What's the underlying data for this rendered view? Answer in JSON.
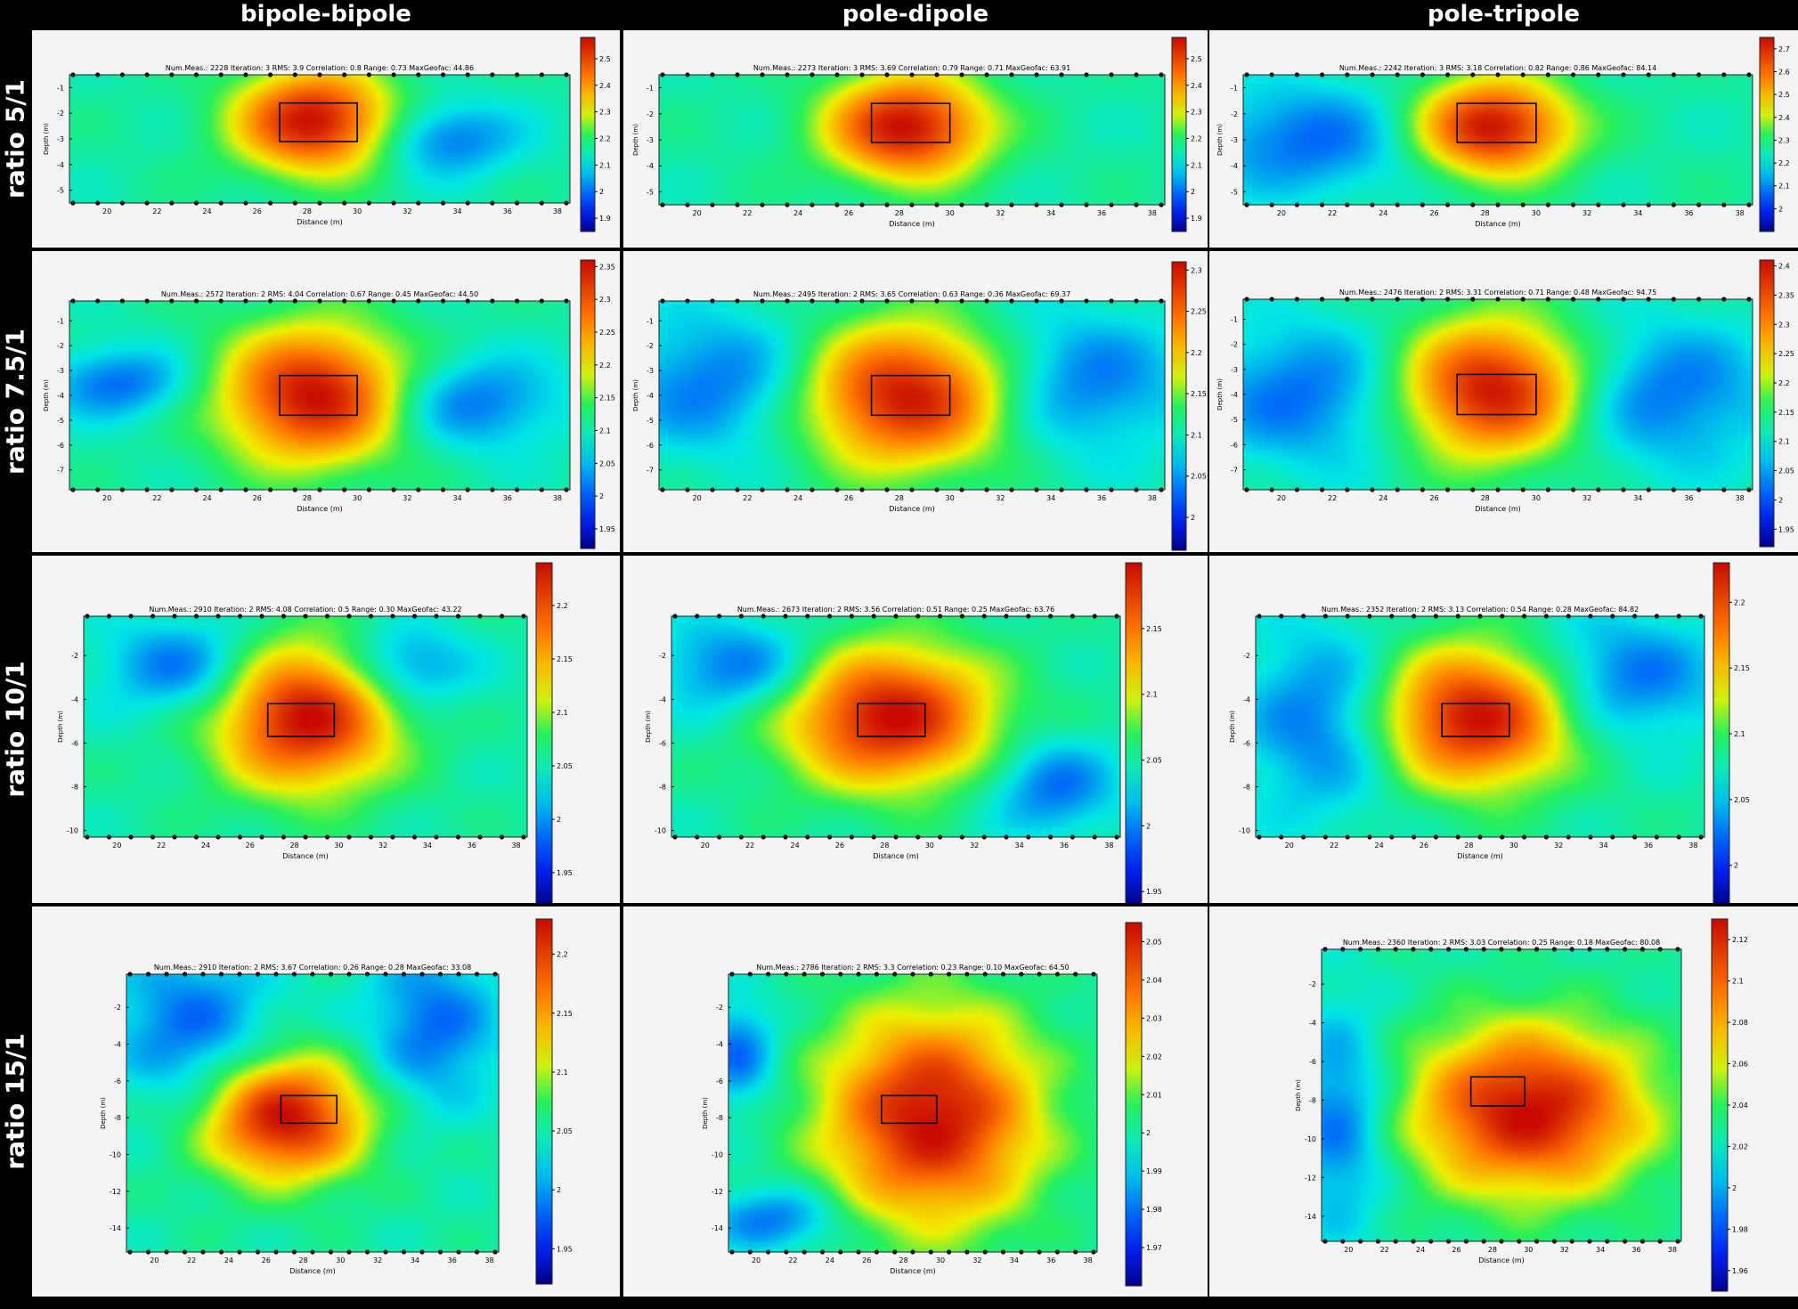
{
  "column_titles": [
    "bipole-bipole",
    "pole-dipole",
    "pole-tripole"
  ],
  "row_titles": [
    "ratio 5/1",
    "ratio 7.5/1",
    "ratio 10/1",
    "ratio 15/1"
  ],
  "common": {
    "xlabel": "Distance (m)",
    "ylabel": "Depth (m)",
    "xticks": [
      20,
      22,
      24,
      26,
      28,
      30,
      32,
      34,
      36,
      38
    ]
  },
  "chart_data": [
    {
      "type": "heatmap",
      "row": "ratio 5/1",
      "column": "bipole-bipole",
      "info": "Num.Meas.: 2228   Iteration: 3   RMS: 3.9   Correlation: 0.8   Range: 0.73   MaxGeofac: 44.86",
      "yticks": [
        -1,
        -2,
        -3,
        -4,
        -5
      ],
      "ylim": [
        -5.5,
        -0.5
      ],
      "xlim": [
        18.5,
        38.5
      ],
      "colorbar_ticks": [
        1.9,
        2,
        2.1,
        2.2,
        2.3,
        2.4,
        2.5
      ],
      "crange": [
        1.85,
        2.58
      ],
      "target": {
        "x": [
          26.9,
          30
        ],
        "y": [
          -1.6,
          -3.1
        ]
      },
      "anomaly": {
        "x": 28.3,
        "y": -2.3,
        "sx": 2.2,
        "sy": 1.4
      },
      "lows": [
        {
          "x": 33.5,
          "y": -3,
          "sx": 2,
          "sy": 1
        }
      ]
    },
    {
      "type": "heatmap",
      "row": "ratio 5/1",
      "column": "pole-dipole",
      "info": "Num.Meas.: 2273   Iteration: 3   RMS: 3.69   Correlation: 0.79   Range: 0.71   MaxGeofac: 63.91",
      "yticks": [
        -1,
        -2,
        -3,
        -4,
        -5
      ],
      "ylim": [
        -5.5,
        -0.5
      ],
      "xlim": [
        18.5,
        38.5
      ],
      "colorbar_ticks": [
        1.9,
        2,
        2.1,
        2.2,
        2.3,
        2.4,
        2.5
      ],
      "crange": [
        1.85,
        2.58
      ],
      "target": {
        "x": [
          26.9,
          30
        ],
        "y": [
          -1.6,
          -3.1
        ]
      },
      "anomaly": {
        "x": 28.3,
        "y": -2.5,
        "sx": 2.2,
        "sy": 1.4
      },
      "lows": []
    },
    {
      "type": "heatmap",
      "row": "ratio 5/1",
      "column": "pole-tripole",
      "info": "Num.Meas.: 2242   Iteration: 3   RMS: 3.18   Correlation: 0.82   Range: 0.86   MaxGeofac: 84.14",
      "yticks": [
        -1,
        -2,
        -3,
        -4,
        -5
      ],
      "ylim": [
        -5.5,
        -0.5
      ],
      "xlim": [
        18.5,
        38.5
      ],
      "colorbar_ticks": [
        2,
        2.1,
        2.2,
        2.3,
        2.4,
        2.5,
        2.6,
        2.7
      ],
      "crange": [
        1.9,
        2.75
      ],
      "target": {
        "x": [
          26.9,
          30
        ],
        "y": [
          -1.6,
          -3.1
        ]
      },
      "anomaly": {
        "x": 28.3,
        "y": -2.5,
        "sx": 2.1,
        "sy": 1.3
      },
      "lows": [
        {
          "x": 21,
          "y": -3,
          "sx": 3,
          "sy": 1.5
        }
      ]
    },
    {
      "type": "heatmap",
      "row": "ratio 7.5/1",
      "column": "bipole-bipole",
      "info": "Num.Meas.: 2572   Iteration: 2   RMS: 4.04   Correlation: 0.67   Range: 0.45   MaxGeofac: 44.50",
      "yticks": [
        -1,
        -2,
        -3,
        -4,
        -5,
        -6,
        -7
      ],
      "ylim": [
        -7.8,
        -0.2
      ],
      "xlim": [
        18.5,
        38.5
      ],
      "colorbar_ticks": [
        1.95,
        2,
        2.05,
        2.1,
        2.15,
        2.2,
        2.25,
        2.3,
        2.35
      ],
      "crange": [
        1.92,
        2.36
      ],
      "target": {
        "x": [
          26.9,
          30
        ],
        "y": [
          -3.2,
          -4.8
        ]
      },
      "anomaly": {
        "x": 28.3,
        "y": -4,
        "sx": 2.6,
        "sy": 1.9
      },
      "lows": [
        {
          "x": 34.5,
          "y": -4.3,
          "sx": 2.5,
          "sy": 1.3
        },
        {
          "x": 20.5,
          "y": -3.5,
          "sx": 2,
          "sy": 1
        }
      ]
    },
    {
      "type": "heatmap",
      "row": "ratio 7.5/1",
      "column": "pole-dipole",
      "info": "Num.Meas.: 2495   Iteration: 2   RMS: 3.65   Correlation: 0.63   Range: 0.36   MaxGeofac: 69.37",
      "yticks": [
        -1,
        -2,
        -3,
        -4,
        -5,
        -6,
        -7
      ],
      "ylim": [
        -7.8,
        -0.2
      ],
      "xlim": [
        18.5,
        38.5
      ],
      "colorbar_ticks": [
        2,
        2.05,
        2.1,
        2.15,
        2.2,
        2.25,
        2.3
      ],
      "crange": [
        1.96,
        2.31
      ],
      "target": {
        "x": [
          26.9,
          30
        ],
        "y": [
          -3.2,
          -4.8
        ]
      },
      "anomaly": {
        "x": 28.3,
        "y": -4,
        "sx": 3,
        "sy": 2
      },
      "lows": [
        {
          "x": 21,
          "y": -3.5,
          "sx": 3,
          "sy": 2
        },
        {
          "x": 35,
          "y": -3.5,
          "sx": 3,
          "sy": 2
        }
      ]
    },
    {
      "type": "heatmap",
      "row": "ratio 7.5/1",
      "column": "pole-tripole",
      "info": "Num.Meas.: 2476   Iteration: 2   RMS: 3.31   Correlation: 0.71   Range: 0.48   MaxGeofac: 94.75",
      "yticks": [
        -1,
        -2,
        -3,
        -4,
        -5,
        -6,
        -7
      ],
      "ylim": [
        -7.8,
        -0.2
      ],
      "xlim": [
        18.5,
        38.5
      ],
      "colorbar_ticks": [
        1.95,
        2,
        2.05,
        2.1,
        2.15,
        2.2,
        2.25,
        2.3,
        2.35,
        2.4
      ],
      "crange": [
        1.92,
        2.41
      ],
      "target": {
        "x": [
          26.9,
          30
        ],
        "y": [
          -3.2,
          -4.8
        ]
      },
      "anomaly": {
        "x": 28.3,
        "y": -3.8,
        "sx": 2.6,
        "sy": 1.9
      },
      "lows": [
        {
          "x": 21,
          "y": -4,
          "sx": 3,
          "sy": 2
        },
        {
          "x": 35,
          "y": -4,
          "sx": 3,
          "sy": 2
        }
      ]
    },
    {
      "type": "heatmap",
      "row": "ratio 10/1",
      "column": "bipole-bipole",
      "info": "Num.Meas.: 2910   Iteration: 2   RMS: 4.08   Correlation: 0.5   Range: 0.30   MaxGeofac: 43.22",
      "yticks": [
        -2,
        -4,
        -6,
        -8,
        -10
      ],
      "ylim": [
        -10.3,
        -0.2
      ],
      "xlim": [
        18.5,
        38.5
      ],
      "colorbar_ticks": [
        1.95,
        2,
        2.05,
        2.1,
        2.15,
        2.2
      ],
      "crange": [
        1.92,
        2.24
      ],
      "target": {
        "x": [
          26.8,
          29.8
        ],
        "y": [
          -4.2,
          -5.7
        ]
      },
      "anomaly": {
        "x": 28.5,
        "y": -4.8,
        "sx": 2.8,
        "sy": 2.3
      },
      "lows": [
        {
          "x": 23,
          "y": -2.5,
          "sx": 2.5,
          "sy": 1.5
        },
        {
          "x": 33,
          "y": -2.5,
          "sx": 2,
          "sy": 1.3
        }
      ]
    },
    {
      "type": "heatmap",
      "row": "ratio 10/1",
      "column": "pole-dipole",
      "info": "Num.Meas.: 2673   Iteration: 2   RMS: 3.56   Correlation: 0.51   Range: 0.25   MaxGeofac: 63.76",
      "yticks": [
        -2,
        -4,
        -6,
        -8,
        -10
      ],
      "ylim": [
        -10.3,
        -0.2
      ],
      "xlim": [
        18.5,
        38.5
      ],
      "colorbar_ticks": [
        1.95,
        2,
        2.05,
        2.1,
        2.15
      ],
      "crange": [
        1.94,
        2.2
      ],
      "target": {
        "x": [
          26.8,
          29.8
        ],
        "y": [
          -4.2,
          -5.7
        ]
      },
      "anomaly": {
        "x": 28.2,
        "y": -4.8,
        "sx": 3.2,
        "sy": 2.2
      },
      "lows": [
        {
          "x": 21.5,
          "y": -2.5,
          "sx": 2.5,
          "sy": 1.5
        },
        {
          "x": 35.5,
          "y": -8,
          "sx": 2,
          "sy": 1.5
        }
      ]
    },
    {
      "type": "heatmap",
      "row": "ratio 10/1",
      "column": "pole-tripole",
      "info": "Num.Meas.: 2352   Iteration: 2   RMS: 3.13   Correlation: 0.54   Range: 0.28   MaxGeofac: 84.82",
      "yticks": [
        -2,
        -4,
        -6,
        -8,
        -10
      ],
      "ylim": [
        -10.3,
        -0.2
      ],
      "xlim": [
        18.5,
        38.5
      ],
      "colorbar_ticks": [
        2,
        2.05,
        2.1,
        2.15,
        2.2
      ],
      "crange": [
        1.97,
        2.23
      ],
      "target": {
        "x": [
          26.8,
          29.8
        ],
        "y": [
          -4.2,
          -5.7
        ]
      },
      "anomaly": {
        "x": 28.3,
        "y": -4.8,
        "sx": 3,
        "sy": 2.2
      },
      "lows": [
        {
          "x": 21.5,
          "y": -5,
          "sx": 2.5,
          "sy": 3
        },
        {
          "x": 35,
          "y": -3,
          "sx": 3,
          "sy": 2
        }
      ]
    },
    {
      "type": "heatmap",
      "row": "ratio 15/1",
      "column": "bipole-bipole",
      "info": "Num.Meas.: 2910   Iteration: 2   RMS: 3.67   Correlation: 0.26   Range: 0.28   MaxGeofac: 33.08",
      "yticks": [
        -2,
        -4,
        -6,
        -8,
        -10,
        -12,
        -14
      ],
      "ylim": [
        -15.3,
        -0.2
      ],
      "xlim": [
        18.5,
        38.5
      ],
      "colorbar_ticks": [
        1.95,
        2,
        2.05,
        2.1,
        2.15,
        2.2
      ],
      "crange": [
        1.92,
        2.23
      ],
      "target": {
        "x": [
          26.8,
          29.8
        ],
        "y": [
          -6.8,
          -8.3
        ]
      },
      "anomaly": {
        "x": 27,
        "y": -8,
        "sx": 3,
        "sy": 2.3
      },
      "lows": [
        {
          "x": 22,
          "y": -3,
          "sx": 3,
          "sy": 3
        },
        {
          "x": 35,
          "y": -3,
          "sx": 2.5,
          "sy": 3
        }
      ]
    },
    {
      "type": "heatmap",
      "row": "ratio 15/1",
      "column": "pole-dipole",
      "info": "Num.Meas.: 2786   Iteration: 2   RMS: 3.3   Correlation: 0.23   Range: 0.10   MaxGeofac: 64.50",
      "yticks": [
        -2,
        -4,
        -6,
        -8,
        -10,
        -12,
        -14
      ],
      "ylim": [
        -15.3,
        -0.2
      ],
      "xlim": [
        18.5,
        38.5
      ],
      "colorbar_ticks": [
        1.97,
        1.98,
        1.99,
        2,
        2.01,
        2.02,
        2.03,
        2.04,
        2.05
      ],
      "crange": [
        1.96,
        2.055
      ],
      "target": {
        "x": [
          26.8,
          29.8
        ],
        "y": [
          -6.8,
          -8.3
        ]
      },
      "anomaly": {
        "x": 29.5,
        "y": -8,
        "sx": 4,
        "sy": 4
      },
      "lows": [
        {
          "x": 19,
          "y": -4.5,
          "sx": 1.5,
          "sy": 2
        },
        {
          "x": 21,
          "y": -13.5,
          "sx": 2.5,
          "sy": 1.2
        }
      ]
    },
    {
      "type": "heatmap",
      "row": "ratio 15/1",
      "column": "pole-tripole",
      "info": "Num.Meas.: 2360   Iteration: 2   RMS: 3.03   Correlation: 0.25   Range: 0.18   MaxGeofac: 80.08",
      "yticks": [
        -2,
        -4,
        -6,
        -8,
        -10,
        -12,
        -14
      ],
      "ylim": [
        -15.3,
        -0.2
      ],
      "xlim": [
        18.5,
        38.5
      ],
      "colorbar_ticks": [
        1.96,
        1.98,
        2,
        2.02,
        2.04,
        2.06,
        2.08,
        2.1,
        2.12
      ],
      "crange": [
        1.95,
        2.13
      ],
      "target": {
        "x": [
          26.8,
          29.8
        ],
        "y": [
          -6.8,
          -8.3
        ]
      },
      "anomaly": {
        "x": 30,
        "y": -8.5,
        "sx": 4.5,
        "sy": 3
      },
      "lows": [
        {
          "x": 19.5,
          "y": -9,
          "sx": 2,
          "sy": 4
        }
      ]
    }
  ]
}
